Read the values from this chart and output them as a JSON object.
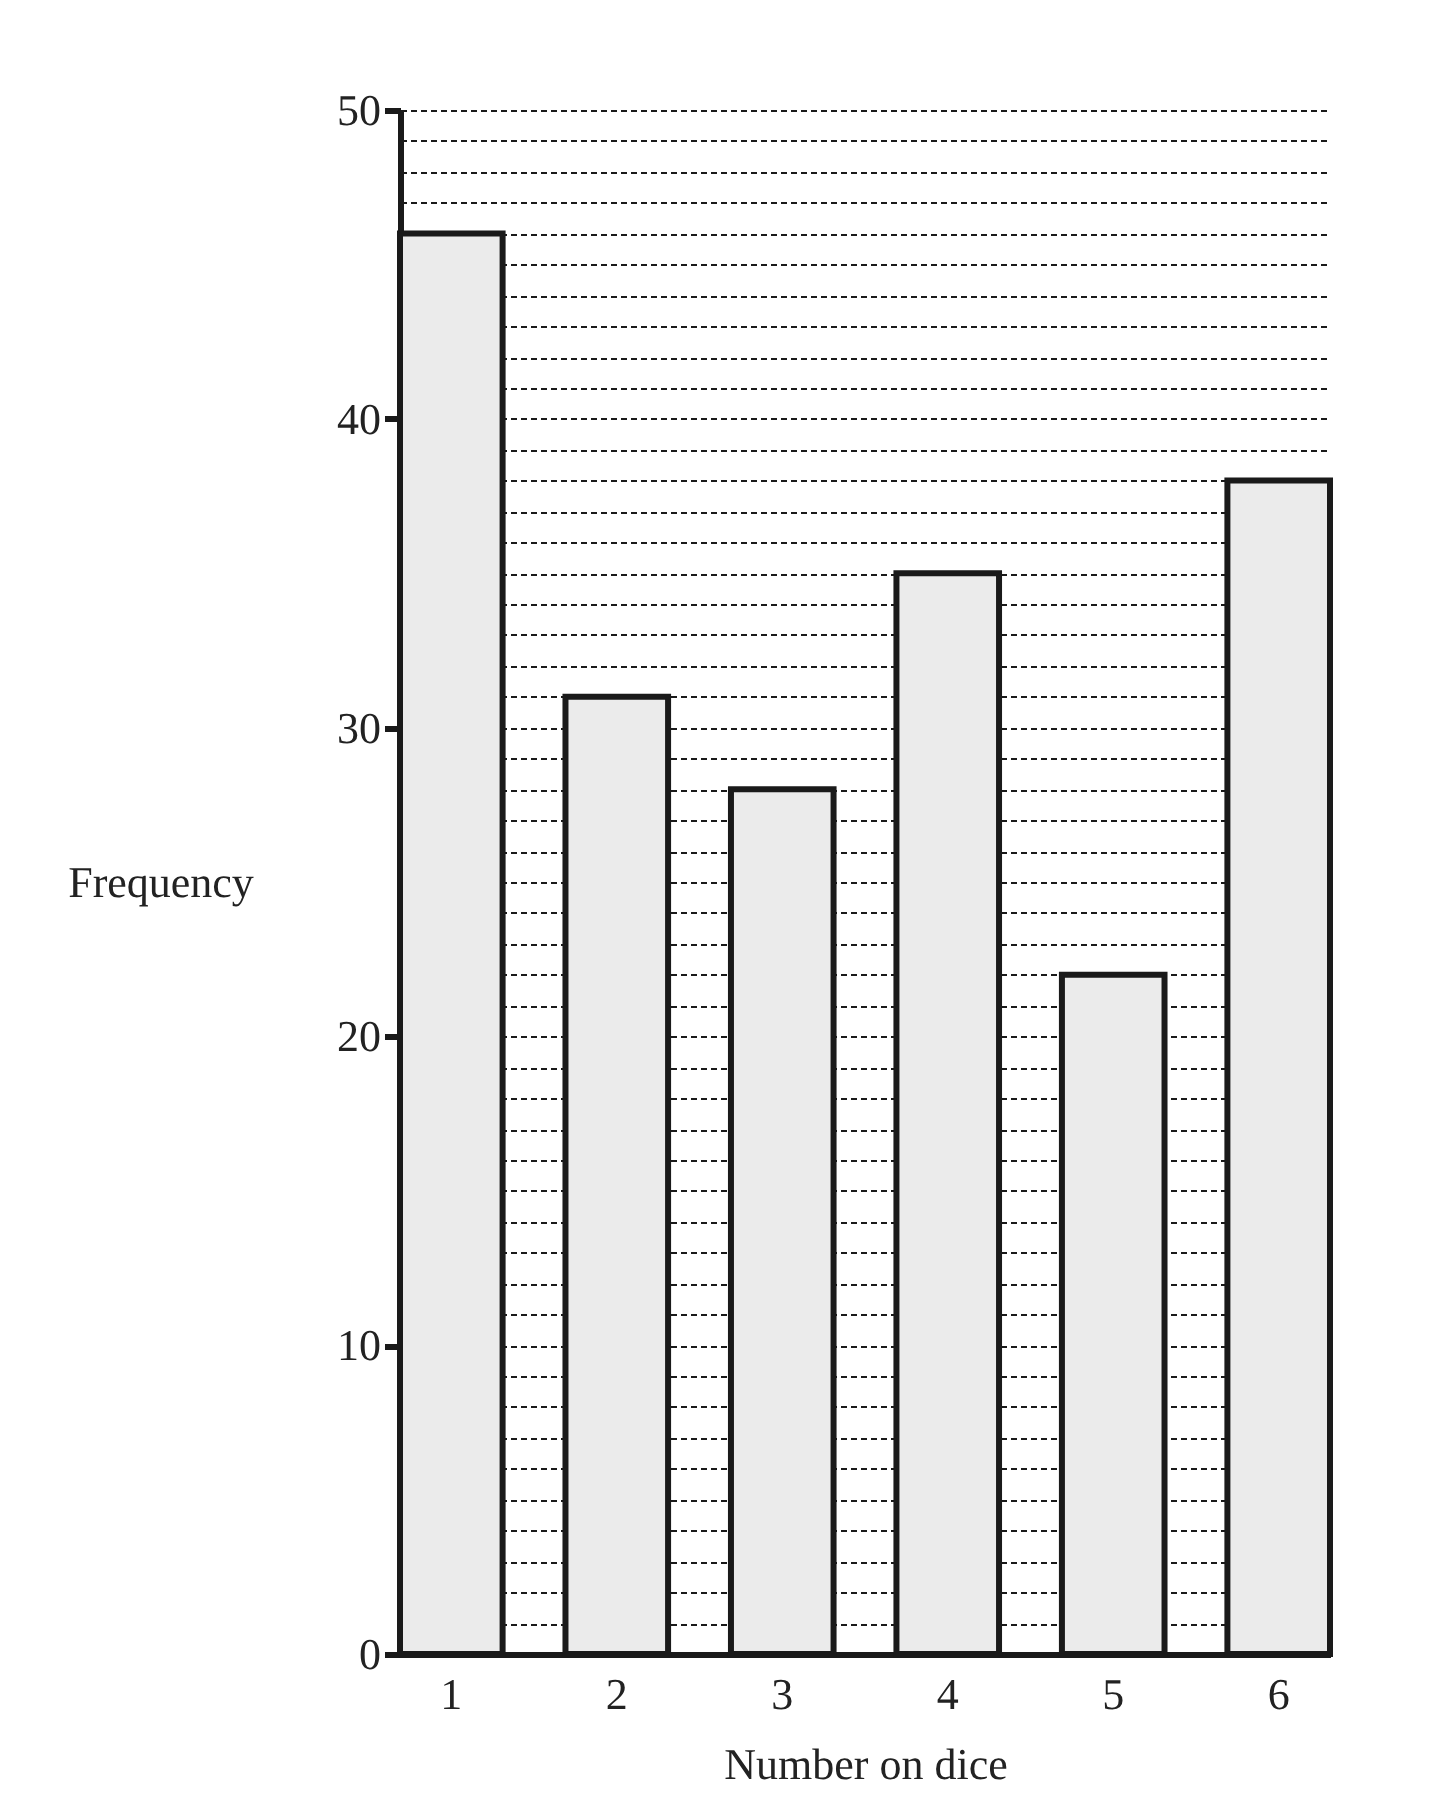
{
  "chart_data": {
    "type": "bar",
    "xlabel": "Number on dice",
    "ylabel": "Frequency",
    "categories": [
      "1",
      "2",
      "3",
      "4",
      "5",
      "6"
    ],
    "values": [
      46,
      31,
      28,
      35,
      22,
      38
    ],
    "color": "#ebebeb",
    "ylim": [
      0,
      50
    ],
    "yticks": [
      0,
      {
        "value": 1,
        "label": null
      },
      {
        "value": 2,
        "label": null
      },
      {
        "value": 3,
        "label": null
      },
      {
        "value": 4,
        "label": null
      },
      {
        "value": 5,
        "label": null
      },
      {
        "value": 6,
        "label": null
      },
      {
        "value": 7,
        "label": null
      },
      {
        "value": 8,
        "label": null
      },
      {
        "value": 9,
        "label": null
      },
      10,
      {
        "value": 11,
        "label": null
      },
      {
        "value": 12,
        "label": null
      },
      {
        "value": 13,
        "label": null
      },
      {
        "value": 14,
        "label": null
      },
      {
        "value": 15,
        "label": null
      },
      {
        "value": 16,
        "label": null
      },
      {
        "value": 17,
        "label": null
      },
      {
        "value": 18,
        "label": null
      },
      {
        "value": 19,
        "label": null
      },
      20,
      {
        "value": 21,
        "label": null
      },
      {
        "value": 22,
        "label": null
      },
      {
        "value": 23,
        "label": null
      },
      {
        "value": 24,
        "label": null
      },
      {
        "value": 25,
        "label": null
      },
      {
        "value": 26,
        "label": null
      },
      {
        "value": 27,
        "label": null
      },
      {
        "value": 28,
        "label": null
      },
      {
        "value": 29,
        "label": null
      },
      30,
      {
        "value": 31,
        "label": null
      },
      {
        "value": 32,
        "label": null
      },
      {
        "value": 33,
        "label": null
      },
      {
        "value": 34,
        "label": null
      },
      {
        "value": 35,
        "label": null
      },
      {
        "value": 36,
        "label": null
      },
      {
        "value": 37,
        "label": null
      },
      {
        "value": 38,
        "label": null
      },
      {
        "value": 39,
        "label": null
      },
      40,
      {
        "value": 41,
        "label": null
      },
      {
        "value": 42,
        "label": null
      },
      {
        "value": 43,
        "label": null
      },
      {
        "value": 44,
        "label": null
      },
      {
        "value": 45,
        "label": null
      },
      {
        "value": 46,
        "label": null
      },
      {
        "value": 47,
        "label": null
      },
      {
        "value": 48,
        "label": null
      },
      {
        "value": 49,
        "label": null
      },
      50
    ],
    "grid": "y"
  }
}
